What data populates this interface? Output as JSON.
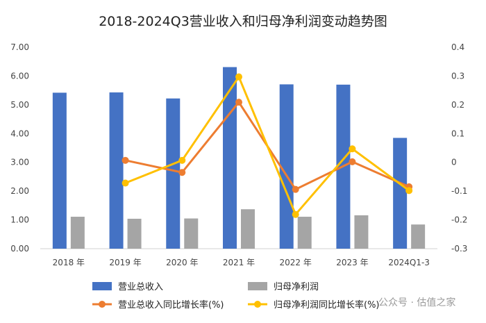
{
  "chart_data": {
    "type": "bar+line",
    "title": "2018-2024Q3营业收入和归母净利润变动趋势图",
    "categories": [
      "2018 年",
      "2019 年",
      "2020 年",
      "2021 年",
      "2022 年",
      "2023 年",
      "2024Q1-3"
    ],
    "left_axis": {
      "min": 0,
      "max": 7,
      "step": 1,
      "ticks": [
        "0.00",
        "1.00",
        "2.00",
        "3.00",
        "4.00",
        "5.00",
        "6.00",
        "7.00"
      ]
    },
    "right_axis": {
      "min": -0.3,
      "max": 0.4,
      "step": 0.1,
      "ticks": [
        "-0.3",
        "-0.2",
        "-0.1",
        "0",
        "0.1",
        "0.2",
        "0.3",
        "0.4"
      ]
    },
    "bar_series": [
      {
        "name": "营业总收入",
        "color": "#4472C4",
        "values": [
          5.42,
          5.43,
          5.22,
          6.31,
          5.71,
          5.7,
          3.85
        ]
      },
      {
        "name": "归母净利润",
        "color": "#A5A5A5",
        "values": [
          1.11,
          1.04,
          1.05,
          1.37,
          1.11,
          1.16,
          0.84
        ]
      }
    ],
    "line_series": [
      {
        "name": "营业总收入同比增长率(%)",
        "color": "#ED7D31",
        "values": [
          null,
          0.007,
          -0.035,
          0.209,
          -0.094,
          0.002,
          -0.085
        ]
      },
      {
        "name": "归母净利润同比增长率(%)",
        "color": "#FFC000",
        "values": [
          null,
          -0.072,
          0.007,
          0.297,
          -0.181,
          0.047,
          -0.098
        ]
      }
    ],
    "grid": false,
    "legend_position": "bottom"
  },
  "watermark": "公众号 · 估值之家"
}
